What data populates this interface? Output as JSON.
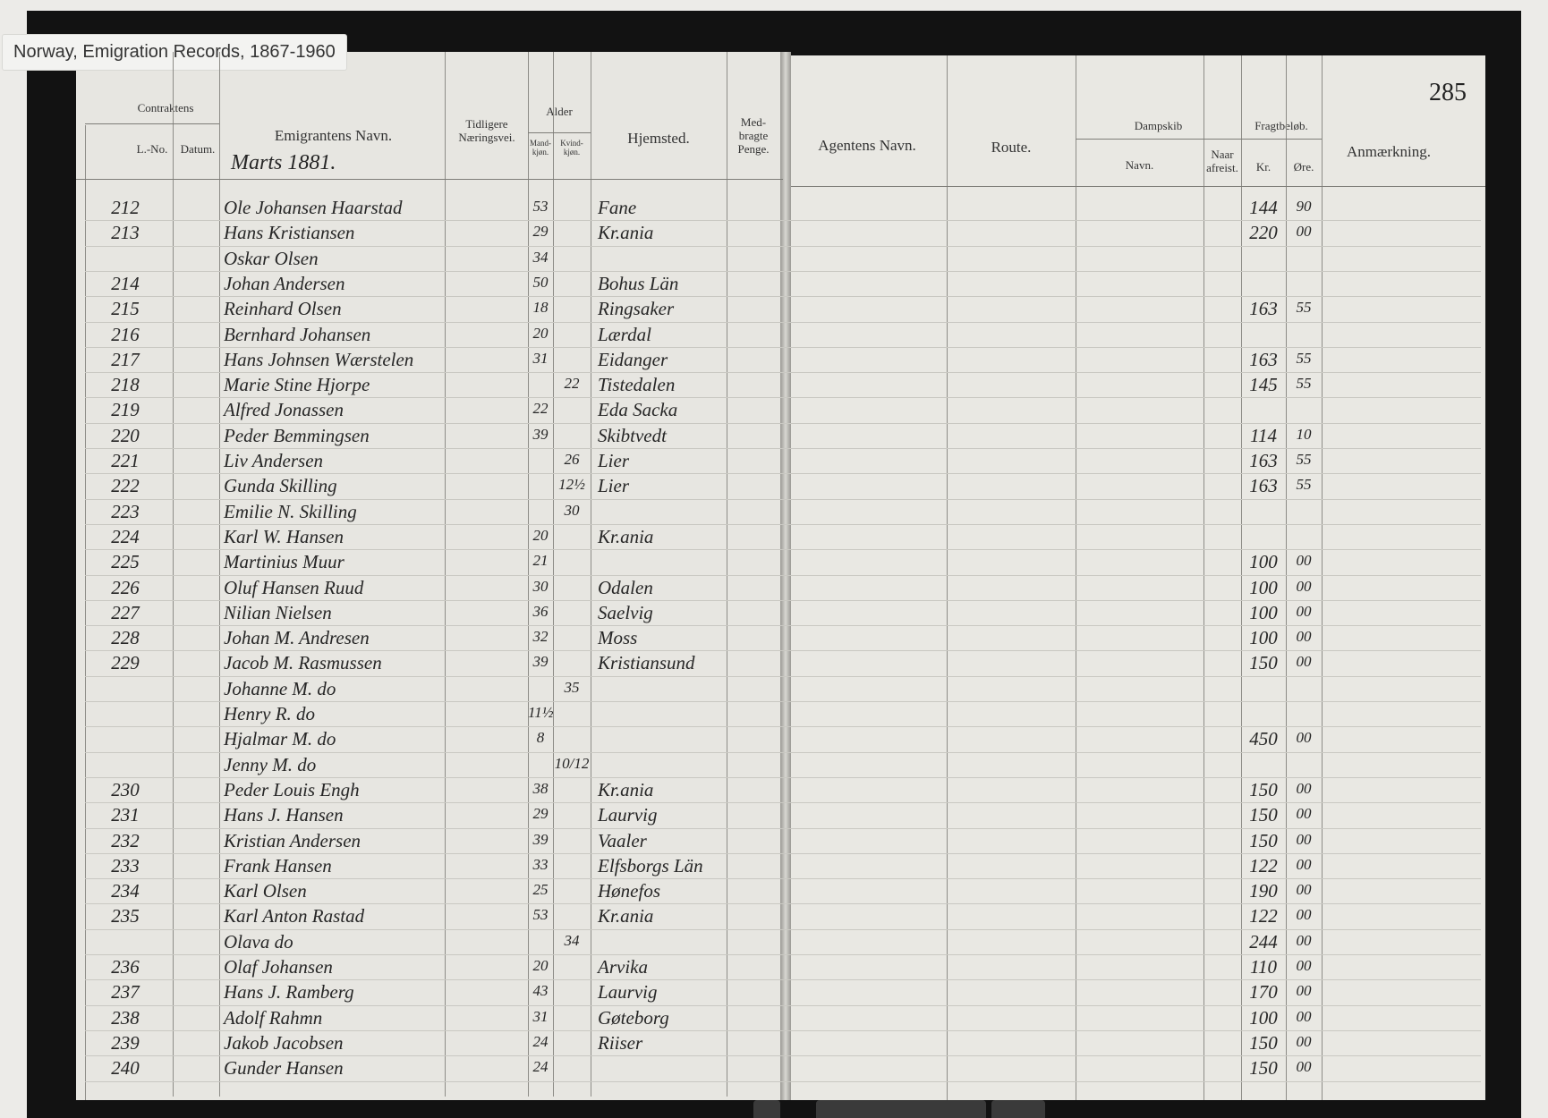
{
  "viewer": {
    "tooltip": "Norway, Emigration Records, 1867-1960"
  },
  "ledger": {
    "page_number": "285",
    "month": "Marts 1881.",
    "headers": {
      "contract": "Contraktens",
      "lno": "L.-No.",
      "datum": "Datum.",
      "name": "Emigrantens Navn.",
      "occupation": "Tidligere\nNæringsvei.",
      "age": "Alder",
      "male": "Mand-\nkjøn.",
      "female": "Kvind-\nkjøn.",
      "home": "Hjemsted.",
      "money": "Med-\nbragte\nPenge.",
      "agent": "Agentens Navn.",
      "route": "Route.",
      "ship": "Dampskib",
      "ship_name": "Navn.",
      "departed": "Naar\nafreist.",
      "fare": "Fragtbeløb.",
      "kr": "Kr.",
      "ore": "Øre.",
      "remark": "Anmærkning."
    },
    "rows": [
      {
        "lno": "212",
        "name": "Ole Johansen Haarstad",
        "m": "53",
        "home": "Fane",
        "kr": "144",
        "ore": "90"
      },
      {
        "lno": "213",
        "name": "Hans Kristiansen",
        "m": "29",
        "home": "Kr.ania",
        "kr": "220",
        "ore": "00"
      },
      {
        "name": "Oskar Olsen",
        "m": "34"
      },
      {
        "lno": "214",
        "name": "Johan Andersen",
        "m": "50",
        "home": "Bohus Län"
      },
      {
        "lno": "215",
        "name": "Reinhard Olsen",
        "m": "18",
        "home": "Ringsaker",
        "kr": "163",
        "ore": "55"
      },
      {
        "lno": "216",
        "name": "Bernhard Johansen",
        "m": "20",
        "home": "Lærdal"
      },
      {
        "lno": "217",
        "name": "Hans Johnsen Wærstelen",
        "m": "31",
        "home": "Eidanger",
        "kr": "163",
        "ore": "55"
      },
      {
        "lno": "218",
        "name": "Marie Stine Hjorpe",
        "f": "22",
        "home": "Tistedalen",
        "kr": "145",
        "ore": "55"
      },
      {
        "lno": "219",
        "name": "Alfred Jonassen",
        "m": "22",
        "home": "Eda Sacka"
      },
      {
        "lno": "220",
        "name": "Peder Bemmingsen",
        "m": "39",
        "home": "Skibtvedt",
        "kr": "114",
        "ore": "10"
      },
      {
        "lno": "221",
        "name": "Liv Andersen",
        "f": "26",
        "home": "Lier",
        "kr": "163",
        "ore": "55"
      },
      {
        "lno": "222",
        "name": "Gunda Skilling",
        "f": "12½",
        "home": "Lier",
        "kr": "163",
        "ore": "55"
      },
      {
        "lno": "223",
        "name": "Emilie N. Skilling",
        "f": "30"
      },
      {
        "lno": "224",
        "name": "Karl W. Hansen",
        "m": "20",
        "home": "Kr.ania"
      },
      {
        "lno": "225",
        "name": "Martinius Muur",
        "m": "21",
        "kr": "100",
        "ore": "00"
      },
      {
        "lno": "226",
        "name": "Oluf Hansen Ruud",
        "m": "30",
        "home": "Odalen",
        "kr": "100",
        "ore": "00"
      },
      {
        "lno": "227",
        "name": "Nilian Nielsen",
        "m": "36",
        "home": "Saelvig",
        "kr": "100",
        "ore": "00"
      },
      {
        "lno": "228",
        "name": "Johan M. Andresen",
        "m": "32",
        "home": "Moss",
        "kr": "100",
        "ore": "00"
      },
      {
        "lno": "229",
        "name": "Jacob M. Rasmussen",
        "m": "39",
        "home": "Kristiansund",
        "kr": "150",
        "ore": "00"
      },
      {
        "name": "Johanne M. do",
        "f": "35"
      },
      {
        "name": "Henry R. do",
        "m": "11½"
      },
      {
        "name": "Hjalmar M. do",
        "m": "8",
        "kr": "450",
        "ore": "00"
      },
      {
        "name": "Jenny M. do",
        "f": "10/12"
      },
      {
        "lno": "230",
        "name": "Peder Louis Engh",
        "m": "38",
        "home": "Kr.ania",
        "kr": "150",
        "ore": "00"
      },
      {
        "lno": "231",
        "name": "Hans J. Hansen",
        "m": "29",
        "home": "Laurvig",
        "kr": "150",
        "ore": "00"
      },
      {
        "lno": "232",
        "name": "Kristian Andersen",
        "m": "39",
        "home": "Vaaler",
        "kr": "150",
        "ore": "00"
      },
      {
        "lno": "233",
        "name": "Frank Hansen",
        "m": "33",
        "home": "Elfsborgs Län",
        "kr": "122",
        "ore": "00"
      },
      {
        "lno": "234",
        "name": "Karl Olsen",
        "m": "25",
        "home": "Hønefos",
        "kr": "190",
        "ore": "00"
      },
      {
        "lno": "235",
        "name": "Karl Anton Rastad",
        "m": "53",
        "home": "Kr.ania",
        "kr": "122",
        "ore": "00"
      },
      {
        "name": "Olava do",
        "f": "34",
        "kr": "244",
        "ore": "00"
      },
      {
        "lno": "236",
        "name": "Olaf Johansen",
        "m": "20",
        "home": "Arvika",
        "kr": "110",
        "ore": "00"
      },
      {
        "lno": "237",
        "name": "Hans J. Ramberg",
        "m": "43",
        "home": "Laurvig",
        "kr": "170",
        "ore": "00"
      },
      {
        "lno": "238",
        "name": "Adolf Rahmn",
        "m": "31",
        "home": "Gøteborg",
        "kr": "100",
        "ore": "00"
      },
      {
        "lno": "239",
        "name": "Jakob Jacobsen",
        "m": "24",
        "home": "Riiser",
        "kr": "150",
        "ore": "00"
      },
      {
        "lno": "240",
        "name": "Gunder Hansen",
        "m": "24",
        "kr": "150",
        "ore": "00"
      }
    ]
  }
}
